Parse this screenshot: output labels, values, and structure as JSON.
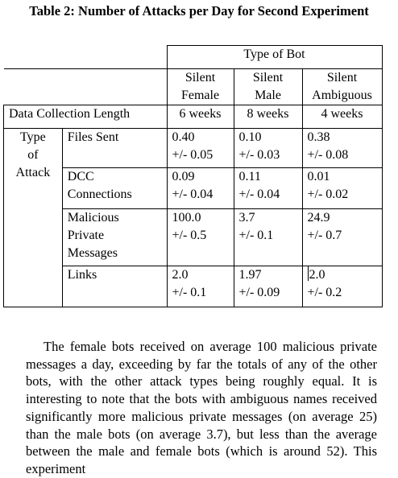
{
  "caption": "Table 2: Number of Attacks per Day for Second Experiment",
  "table": {
    "type_of_bot": "Type of Bot",
    "columns": [
      {
        "line1": "Silent",
        "line2": "Female"
      },
      {
        "line1": "Silent",
        "line2": "Male"
      },
      {
        "line1": "Silent",
        "line2": "Ambiguous"
      }
    ],
    "data_collection": {
      "label": "Data Collection Length",
      "values": [
        "6 weeks",
        "8 weeks",
        "4 weeks"
      ]
    },
    "type_of_attack": {
      "line1": "Type",
      "line2": "of",
      "line3": "Attack"
    },
    "rows": [
      {
        "label": [
          "Files Sent"
        ],
        "cells": [
          [
            "0.40",
            "+/- 0.05"
          ],
          [
            "0.10",
            "+/- 0.03"
          ],
          [
            "0.38",
            "+/- 0.08"
          ]
        ]
      },
      {
        "label": [
          "DCC",
          "Connections"
        ],
        "cells": [
          [
            "0.09",
            "+/- 0.04"
          ],
          [
            "0.11",
            "+/- 0.04"
          ],
          [
            "0.01",
            "+/- 0.02"
          ]
        ]
      },
      {
        "label": [
          "Malicious",
          "Private",
          "Messages"
        ],
        "cells": [
          [
            "100.0",
            "+/- 0.5"
          ],
          [
            "3.7",
            "+/- 0.1"
          ],
          [
            "24.9",
            "+/- 0.7"
          ]
        ]
      },
      {
        "label": [
          "Links"
        ],
        "cells": [
          [
            "2.0",
            "+/- 0.1"
          ],
          [
            "1.97",
            "+/- 0.09"
          ],
          [
            "2.0",
            "+/- 0.2"
          ]
        ]
      }
    ]
  },
  "paragraph": "The female bots received on average 100 malicious private messages a day, exceeding by far the totals of any of the other bots, with the other attack types being roughly equal. It is interesting to note that the bots with ambiguous names received significantly more malicious private messages (on average 25) than the male bots (on average 3.7), but less than the average between the male and female bots (which is around 52). This experiment"
}
